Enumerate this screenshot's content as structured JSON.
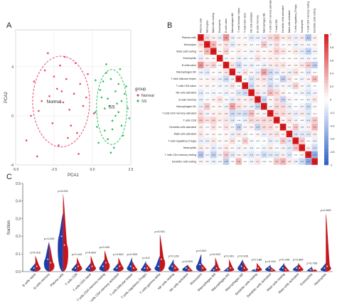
{
  "panels": {
    "a": {
      "letter": "A"
    },
    "b": {
      "letter": "B"
    },
    "c": {
      "letter": "C"
    }
  },
  "colors": {
    "normal": "#e8476a",
    "ss": "#2fbf5b",
    "violin_blue": "#1f3fa8",
    "violin_red": "#c4161c",
    "heat_pos": "#d7191c",
    "heat_neg": "#2b5fc8"
  },
  "chart_data": [
    {
      "type": "scatter",
      "title": "",
      "xlabel": "PCA1",
      "ylabel": "PCA2",
      "xlim": [
        -5,
        2.5
      ],
      "ylim": [
        -4,
        7
      ],
      "xticks": [
        "-5.0",
        "-2.5",
        "0.0",
        "2.5"
      ],
      "yticks": [
        "-4",
        "0",
        "4"
      ],
      "grid": true,
      "legend_title": "group",
      "legend_position": "right",
      "series": [
        {
          "name": "Normal",
          "color": "#e8476a",
          "x": [
            -4.3,
            -3.8,
            -3.5,
            -3.1,
            -2.8,
            -2.6,
            -2.3,
            -2.1,
            -1.9,
            -1.7,
            -1.5,
            -1.2,
            -1.0,
            -0.8,
            -0.6,
            -0.3,
            -2.9,
            -2.2,
            -1.8,
            -1.4,
            -3.3,
            -2.5,
            -0.9,
            -0.4,
            -4.0,
            -1.1,
            -2.0,
            -1.6,
            -3.6,
            0.1
          ],
          "y": [
            -2.0,
            2.8,
            0.4,
            3.7,
            1.6,
            -0.6,
            2.2,
            4.1,
            1.1,
            3.0,
            0.5,
            1.8,
            -1.4,
            2.6,
            0.8,
            3.4,
            5.1,
            -2.4,
            4.8,
            -0.8,
            1.2,
            3.2,
            -3.1,
            1.5,
            0.0,
            4.3,
            2.0,
            -1.8,
            -3.3,
            0.2
          ]
        },
        {
          "name": "SS",
          "color": "#2fbf5b",
          "x": [
            0.2,
            0.5,
            0.8,
            1.0,
            1.2,
            1.5,
            1.7,
            1.9,
            2.1,
            2.3,
            0.4,
            0.9,
            1.3,
            1.6,
            2.0,
            0.7,
            1.1,
            1.8,
            0.3,
            1.4,
            2.2,
            0.6,
            1.0,
            1.7,
            0.9,
            1.5,
            2.4,
            0.2,
            1.2,
            1.9,
            0.8,
            1.3
          ],
          "y": [
            0.3,
            2.1,
            -1.2,
            1.4,
            3.0,
            0.0,
            2.6,
            -0.8,
            1.8,
            0.6,
            -2.2,
            3.5,
            -0.4,
            1.0,
            -1.6,
            2.8,
            0.8,
            3.8,
            -0.9,
            -2.6,
            2.4,
            1.5,
            -1.9,
            0.3,
            4.2,
            2.0,
            -0.2,
            2.9,
            -3.0,
            1.2,
            0.6,
            -1.1
          ]
        }
      ]
    },
    {
      "type": "heatmap",
      "title": "",
      "rows": [
        "Plasma cells",
        "Monocytes",
        "Mast cells resting",
        "Eosinophils",
        "B cells naive",
        "Macrophages M2",
        "T cells follicular helper",
        "T cells CD4 naive",
        "NK cells activated",
        "B cells memory",
        "Macrophages M1",
        "T cells CD4 memory activated",
        "T cells CD8",
        "Dendritic cells activated",
        "Mast cells activated",
        "T cells regulatory (Tregs)",
        "Neutrophils",
        "T cells CD4 memory resting",
        "Dendritic cells resting"
      ],
      "columns": [
        "Plasma cells",
        "Monocytes",
        "Mast cells resting",
        "Eosinophils",
        "B cells naive",
        "Macrophages M2",
        "T cells follicular helper",
        "T cells CD4 naive",
        "NK cells activated",
        "B cells memory",
        "Macrophages M1",
        "T cells CD4 memory activated",
        "T cells CD8",
        "Dendritic cells activated",
        "Mast cells activated",
        "T cells regulatory (Tregs)",
        "Neutrophils",
        "T cells CD4 memory resting",
        "Dendritic cells resting"
      ],
      "values": [
        [
          1,
          0.13,
          0.06,
          -0.1,
          0.47,
          -0.08,
          0.04,
          0.03,
          -0.13,
          -0.09,
          -0.1,
          0.16,
          0.25,
          0.08,
          0.11,
          -0.1,
          0.09,
          -0.37,
          0.06
        ],
        [
          0.13,
          1,
          0.31,
          0.05,
          0.12,
          -0.13,
          0.04,
          0.05,
          -0.03,
          -0.02,
          0.24,
          -0.06,
          0.13,
          -0.02,
          0.03,
          -0.09,
          0.04,
          -0.05,
          0.04
        ],
        [
          0.06,
          0.31,
          1,
          0.03,
          0.19,
          0.01,
          0.07,
          0.02,
          -0.06,
          0.06,
          0.02,
          0.06,
          0.21,
          0.12,
          0.03,
          0.1,
          -0.12,
          -0.29,
          -0.08
        ],
        [
          -0.1,
          0.05,
          0.03,
          1,
          -0.02,
          0.04,
          -0.09,
          -0.06,
          -0.03,
          0.13,
          0.04,
          0.07,
          0.07,
          -0.02,
          -0.01,
          0.02,
          -0.05,
          -0.06,
          -0.04
        ],
        [
          0.47,
          0.12,
          0.19,
          -0.02,
          1,
          0.11,
          -0.24,
          -0.06,
          -0.09,
          -0.04,
          -0.09,
          0.08,
          0.11,
          0.12,
          0.03,
          0.04,
          0.1,
          0.24,
          -0.3
        ],
        [
          -0.08,
          -0.13,
          0.01,
          0.04,
          0.11,
          1,
          -0.07,
          0.12,
          0.04,
          -0.11,
          0.41,
          -0.23,
          -0.14,
          0.05,
          -0.09,
          0.14,
          0.02,
          -0.14,
          -0.01
        ],
        [
          0.04,
          0.04,
          0.07,
          -0.09,
          -0.24,
          -0.07,
          1,
          -0.02,
          -0.17,
          0.09,
          0.14,
          -0.18,
          -0.04,
          -0.31,
          0.1,
          -0.02,
          -0.07,
          0.06,
          0.3
        ],
        [
          0.03,
          0.05,
          0.02,
          -0.06,
          -0.06,
          0.12,
          -0.02,
          1,
          -0.22,
          0.06,
          0.07,
          -0.21,
          -0.1,
          0.04,
          -0.07,
          0.21,
          0.04,
          -0.09,
          0.0
        ],
        [
          -0.13,
          -0.03,
          -0.06,
          -0.03,
          -0.09,
          0.04,
          -0.17,
          -0.22,
          1,
          0.12,
          -0.08,
          0.29,
          0.17,
          0.06,
          0.0,
          -0.04,
          -0.06,
          -0.15,
          -0.06
        ],
        [
          -0.09,
          -0.02,
          0.06,
          0.13,
          -0.04,
          -0.11,
          0.09,
          0.06,
          0.12,
          1,
          -0.26,
          0.05,
          0.14,
          -0.26,
          0.05,
          -0.02,
          0.0,
          -0.07,
          0.11
        ],
        [
          -0.1,
          0.24,
          0.02,
          0.04,
          -0.09,
          0.41,
          0.14,
          0.07,
          -0.08,
          -0.26,
          1,
          -0.05,
          0.18,
          0.16,
          -0.11,
          0.01,
          -0.07,
          -0.22,
          -0.03
        ],
        [
          0.16,
          -0.06,
          0.06,
          0.07,
          0.08,
          -0.23,
          -0.18,
          -0.21,
          0.29,
          0.05,
          -0.05,
          1,
          0.16,
          0.16,
          0.09,
          -0.12,
          0.09,
          -0.14,
          -0.01
        ],
        [
          0.25,
          0.13,
          0.21,
          0.07,
          0.11,
          -0.14,
          -0.04,
          -0.1,
          0.17,
          0.14,
          0.18,
          0.16,
          1,
          0.05,
          0.13,
          -0.07,
          -0.03,
          -0.14,
          0.24
        ],
        [
          0.08,
          -0.02,
          0.12,
          -0.02,
          0.12,
          0.05,
          -0.31,
          0.04,
          0.06,
          -0.26,
          0.16,
          0.16,
          0.05,
          1,
          0.04,
          0.24,
          -0.06,
          0.07,
          0.32
        ],
        [
          0.11,
          0.03,
          0.03,
          -0.01,
          0.03,
          -0.09,
          0.1,
          -0.07,
          0.0,
          0.05,
          -0.11,
          0.09,
          0.13,
          0.04,
          1,
          -0.15,
          -0.13,
          -0.15,
          0.08
        ],
        [
          -0.1,
          -0.09,
          0.1,
          0.02,
          0.04,
          0.14,
          -0.02,
          0.21,
          -0.04,
          -0.02,
          0.01,
          -0.12,
          -0.07,
          0.24,
          -0.15,
          1,
          0.24,
          0.0,
          -0.09
        ],
        [
          0.09,
          0.04,
          -0.12,
          -0.05,
          0.1,
          0.02,
          -0.07,
          0.04,
          -0.06,
          0.0,
          -0.07,
          0.09,
          -0.03,
          -0.06,
          -0.13,
          0.24,
          1,
          0.05,
          -0.22
        ],
        [
          -0.37,
          -0.05,
          -0.29,
          -0.06,
          0.24,
          -0.14,
          0.06,
          -0.09,
          -0.15,
          -0.07,
          -0.22,
          -0.14,
          -0.14,
          0.07,
          -0.15,
          0.0,
          0.05,
          1,
          -0.53
        ],
        [
          0.06,
          0.04,
          -0.08,
          -0.04,
          -0.3,
          -0.01,
          0.3,
          0.0,
          -0.06,
          0.11,
          -0.03,
          -0.01,
          0.24,
          0.32,
          0.08,
          -0.09,
          -0.22,
          -0.53,
          1
        ]
      ],
      "scale_ticks": [
        "1",
        "0.8",
        "0.6",
        "0.4",
        "0.2",
        "0",
        "-0.2",
        "-0.4",
        "-0.6",
        "-0.8",
        "-1"
      ],
      "zlim": [
        -1,
        1
      ]
    },
    {
      "type": "violin",
      "title": "",
      "xlabel": "",
      "ylabel": "fraction",
      "ylim": [
        0,
        0.5
      ],
      "yticks": [
        "0.0",
        "0.1",
        "0.2",
        "0.3",
        "0.4",
        "0.5"
      ],
      "categories": [
        "B cells naive",
        "B cells memory",
        "Plasma cells",
        "T cells CD8",
        "T cells CD4 naive",
        "T cells CD4 memory resting",
        "T cells CD4 memory activated",
        "T cells follicular helper",
        "T cells regulatory (Tregs)",
        "T cells gamma delta",
        "NK cells resting",
        "NK cells activated",
        "Monocytes",
        "Macrophages M0",
        "Macrophages M1",
        "Macrophages M2",
        "Dendritic cells resting",
        "Dendritic cells activated",
        "Mast cells resting",
        "Mast cells activated",
        "Eosinophils",
        "Neutrophils"
      ],
      "p_values": [
        "p=0.016",
        "p=0.249",
        "p=0.001",
        "p=0.144",
        "p=0.060",
        "p=0.042",
        "p=0.062",
        "p=0.503",
        "p=0.6",
        "p=0.001",
        "p=0.126",
        "p=0.509",
        "p=0.001",
        "p=0.002",
        "p=0.001",
        "p=0.106",
        "p=0.186",
        "p=0.134",
        "p=0.249",
        "p=0.584",
        "p=0.766",
        "p=0.000"
      ],
      "series": [
        {
          "name": "Normal",
          "color": "#1f3fa8",
          "max": [
            0.05,
            0.17,
            0.33,
            0.05,
            0.05,
            0.07,
            0.05,
            0.08,
            0.06,
            0.09,
            0.07,
            0.04,
            0.1,
            0.04,
            0.03,
            0.07,
            0.02,
            0.04,
            0.05,
            0.04,
            0.03,
            0.05
          ],
          "median": [
            0.02,
            0.07,
            0.2,
            0.02,
            0.02,
            0.03,
            0.02,
            0.03,
            0.02,
            0.03,
            0.03,
            0.02,
            0.04,
            0.01,
            0.01,
            0.03,
            0.01,
            0.02,
            0.02,
            0.02,
            0.01,
            0.02
          ]
        },
        {
          "name": "SS",
          "color": "#c4161c",
          "max": [
            0.09,
            0.16,
            0.44,
            0.08,
            0.09,
            0.12,
            0.08,
            0.06,
            0.05,
            0.21,
            0.05,
            0.04,
            0.05,
            0.08,
            0.07,
            0.06,
            0.05,
            0.03,
            0.04,
            0.05,
            0.02,
            0.33
          ],
          "median": [
            0.03,
            0.05,
            0.15,
            0.03,
            0.03,
            0.05,
            0.03,
            0.02,
            0.02,
            0.07,
            0.02,
            0.01,
            0.02,
            0.02,
            0.02,
            0.02,
            0.02,
            0.01,
            0.01,
            0.02,
            0.01,
            0.03
          ]
        }
      ]
    }
  ]
}
